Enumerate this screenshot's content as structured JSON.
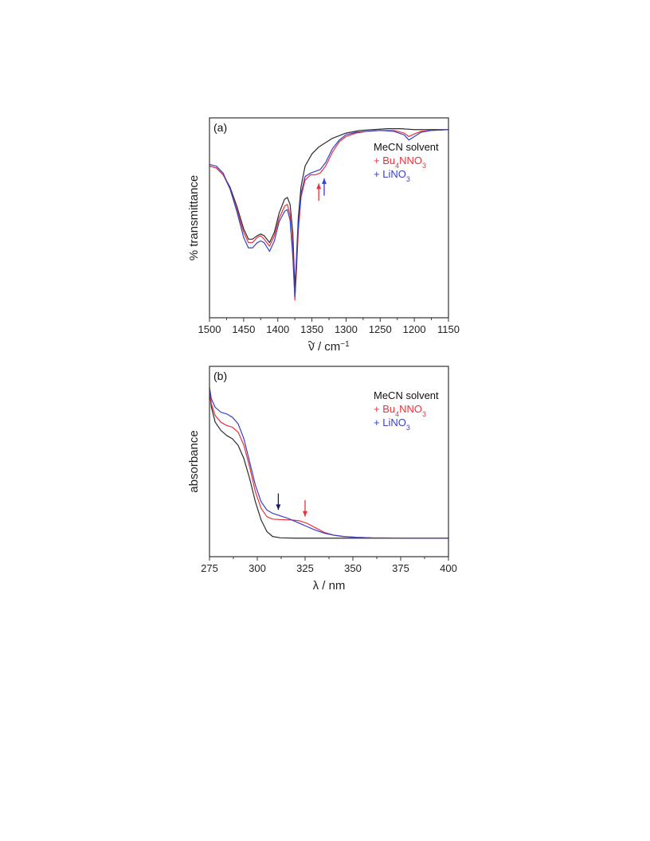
{
  "colors": {
    "black": "#2b2b2b",
    "red": "#e8323c",
    "blue": "#3a3fc8",
    "darkblue": "#1a1a6e",
    "axis": "#333333"
  },
  "chart_data": [
    {
      "type": "line",
      "panel_label": "(a)",
      "xlabel_symbol": "ν",
      "xlabel_rest": " / cm",
      "xlabel_sup": "−1",
      "ylabel": "% transmittance",
      "xlim": [
        1500,
        1150
      ],
      "x_reversed": true,
      "ylim": [
        0,
        100
      ],
      "xticks": [
        "1500",
        "1450",
        "1400",
        "1350",
        "1300",
        "1250",
        "1200",
        "1150"
      ],
      "xtick_values": [
        1500,
        1450,
        1400,
        1350,
        1300,
        1250,
        1200,
        1150
      ],
      "legend": {
        "placement": "top-right",
        "entries": [
          {
            "prefix": "",
            "name": "MeCN solvent",
            "sub": "",
            "suffix": "",
            "sub2": "",
            "color": "#111111"
          },
          {
            "prefix": "+ ",
            "name": "Bu",
            "sub": "4",
            "suffix": "NNO",
            "sub2": "3",
            "color": "#e8323c"
          },
          {
            "prefix": "+ ",
            "name": "LiNO",
            "sub": "3",
            "suffix": "",
            "sub2": "",
            "color": "#3a3fc8"
          }
        ]
      },
      "arrows": [
        {
          "x": 1340,
          "y_from": 58,
          "y_to": 68,
          "direction": "up",
          "color": "#e8323c"
        },
        {
          "x": 1332,
          "y_from": 61,
          "y_to": 71,
          "direction": "up",
          "color": "#3a3fc8"
        }
      ],
      "series": [
        {
          "color": "#2b2b2b",
          "points": [
            [
              1500,
              78
            ],
            [
              1490,
              77
            ],
            [
              1480,
              73
            ],
            [
              1470,
              66
            ],
            [
              1460,
              55
            ],
            [
              1450,
              42
            ],
            [
              1443,
              36
            ],
            [
              1437,
              36
            ],
            [
              1430,
              38
            ],
            [
              1425,
              39
            ],
            [
              1420,
              38
            ],
            [
              1412,
              34
            ],
            [
              1405,
              40
            ],
            [
              1398,
              51
            ],
            [
              1390,
              59
            ],
            [
              1386,
              60
            ],
            [
              1382,
              56
            ],
            [
              1378,
              40
            ],
            [
              1375,
              8
            ],
            [
              1373,
              22
            ],
            [
              1370,
              48
            ],
            [
              1366,
              66
            ],
            [
              1360,
              78
            ],
            [
              1350,
              85
            ],
            [
              1340,
              89
            ],
            [
              1320,
              94
            ],
            [
              1300,
              97
            ],
            [
              1280,
              98.5
            ],
            [
              1260,
              99
            ],
            [
              1240,
              99.5
            ],
            [
              1220,
              99.5
            ],
            [
              1200,
              99
            ],
            [
              1180,
              99
            ],
            [
              1160,
              99
            ],
            [
              1150,
              99
            ]
          ]
        },
        {
          "color": "#e8323c",
          "points": [
            [
              1500,
              78
            ],
            [
              1490,
              77
            ],
            [
              1480,
              73
            ],
            [
              1470,
              65
            ],
            [
              1460,
              53
            ],
            [
              1450,
              40
            ],
            [
              1443,
              34
            ],
            [
              1437,
              34
            ],
            [
              1430,
              37
            ],
            [
              1425,
              38
            ],
            [
              1420,
              36
            ],
            [
              1412,
              32
            ],
            [
              1405,
              38
            ],
            [
              1398,
              48
            ],
            [
              1390,
              55
            ],
            [
              1386,
              56
            ],
            [
              1382,
              50
            ],
            [
              1378,
              30
            ],
            [
              1375,
              1
            ],
            [
              1373,
              15
            ],
            [
              1370,
              40
            ],
            [
              1366,
              60
            ],
            [
              1360,
              70
            ],
            [
              1352,
              73
            ],
            [
              1345,
              73
            ],
            [
              1338,
              74
            ],
            [
              1330,
              78
            ],
            [
              1320,
              86
            ],
            [
              1310,
              92
            ],
            [
              1300,
              95
            ],
            [
              1285,
              97
            ],
            [
              1270,
              98
            ],
            [
              1250,
              98.5
            ],
            [
              1230,
              98.5
            ],
            [
              1215,
              97
            ],
            [
              1208,
              95
            ],
            [
              1200,
              96.5
            ],
            [
              1190,
              98
            ],
            [
              1175,
              98.5
            ],
            [
              1150,
              99
            ]
          ]
        },
        {
          "color": "#3a3fc8",
          "points": [
            [
              1500,
              79
            ],
            [
              1490,
              78
            ],
            [
              1480,
              74
            ],
            [
              1470,
              65
            ],
            [
              1460,
              52
            ],
            [
              1450,
              37
            ],
            [
              1443,
              31
            ],
            [
              1437,
              31
            ],
            [
              1430,
              34
            ],
            [
              1425,
              35
            ],
            [
              1420,
              34
            ],
            [
              1412,
              29
            ],
            [
              1405,
              35
            ],
            [
              1398,
              46
            ],
            [
              1390,
              52
            ],
            [
              1386,
              53
            ],
            [
              1382,
              47
            ],
            [
              1378,
              26
            ],
            [
              1375,
              3
            ],
            [
              1373,
              18
            ],
            [
              1370,
              44
            ],
            [
              1366,
              62
            ],
            [
              1360,
              72
            ],
            [
              1352,
              74
            ],
            [
              1345,
              75
            ],
            [
              1338,
              76
            ],
            [
              1330,
              80
            ],
            [
              1320,
              88
            ],
            [
              1310,
              93
            ],
            [
              1300,
              96
            ],
            [
              1285,
              97.5
            ],
            [
              1270,
              98
            ],
            [
              1250,
              98.5
            ],
            [
              1230,
              98
            ],
            [
              1215,
              96
            ],
            [
              1208,
              93
            ],
            [
              1200,
              95
            ],
            [
              1190,
              97.5
            ],
            [
              1175,
              98.5
            ],
            [
              1150,
              99
            ]
          ]
        }
      ]
    },
    {
      "type": "line",
      "panel_label": "(b)",
      "xlabel_symbol": "λ",
      "xlabel_rest": " / nm",
      "xlabel_sup": "",
      "ylabel": "absorbance",
      "xlim": [
        275,
        400
      ],
      "x_reversed": false,
      "ylim": [
        0,
        100
      ],
      "xticks": [
        "275",
        "300",
        "325",
        "350",
        "375",
        "400"
      ],
      "xtick_values": [
        275,
        300,
        325,
        350,
        375,
        400
      ],
      "legend": {
        "placement": "top-right",
        "entries": [
          {
            "prefix": "",
            "name": "MeCN solvent",
            "sub": "",
            "suffix": "",
            "sub2": "",
            "color": "#111111"
          },
          {
            "prefix": "+ ",
            "name": "Bu",
            "sub": "4",
            "suffix": "NNO",
            "sub2": "3",
            "color": "#e8323c"
          },
          {
            "prefix": "+ ",
            "name": "LiNO",
            "sub": "3",
            "suffix": "",
            "sub2": "",
            "color": "#3a3fc8"
          }
        ]
      },
      "arrows": [
        {
          "x": 311,
          "y_from": 19,
          "y_to": 29,
          "direction": "down",
          "color": "#1a1a6e"
        },
        {
          "x": 325,
          "y_from": 15,
          "y_to": 25,
          "direction": "down",
          "color": "#e8323c"
        }
      ],
      "series": [
        {
          "color": "#2b2b2b",
          "points": [
            [
              275,
              91
            ],
            [
              276,
              81
            ],
            [
              278,
              72
            ],
            [
              281,
              67
            ],
            [
              284,
              64
            ],
            [
              287,
              62
            ],
            [
              290,
              58
            ],
            [
              293,
              50
            ],
            [
              296,
              38
            ],
            [
              299,
              24
            ],
            [
              302,
              13
            ],
            [
              305,
              6
            ],
            [
              308,
              3
            ],
            [
              312,
              2.2
            ],
            [
              320,
              2
            ],
            [
              340,
              2
            ],
            [
              370,
              2
            ],
            [
              400,
              2
            ]
          ]
        },
        {
          "color": "#e8323c",
          "points": [
            [
              275,
              92
            ],
            [
              276,
              83
            ],
            [
              278,
              76
            ],
            [
              281,
              72
            ],
            [
              284,
              70
            ],
            [
              287,
              69
            ],
            [
              290,
              66
            ],
            [
              293,
              58
            ],
            [
              296,
              45
            ],
            [
              299,
              30
            ],
            [
              302,
              20
            ],
            [
              305,
              15
            ],
            [
              308,
              13.5
            ],
            [
              312,
              13.2
            ],
            [
              318,
              13
            ],
            [
              322,
              12.5
            ],
            [
              326,
              11
            ],
            [
              330,
              8.5
            ],
            [
              335,
              5.5
            ],
            [
              340,
              3.8
            ],
            [
              345,
              3
            ],
            [
              352,
              2.5
            ],
            [
              360,
              2.2
            ],
            [
              380,
              2
            ],
            [
              400,
              2
            ]
          ]
        },
        {
          "color": "#3a3fc8",
          "points": [
            [
              275,
              93
            ],
            [
              276,
              86
            ],
            [
              278,
              81
            ],
            [
              281,
              78
            ],
            [
              284,
              77
            ],
            [
              287,
              75
            ],
            [
              290,
              71
            ],
            [
              293,
              62
            ],
            [
              296,
              48
            ],
            [
              299,
              34
            ],
            [
              302,
              24
            ],
            [
              305,
              19
            ],
            [
              308,
              17
            ],
            [
              312,
              15.5
            ],
            [
              316,
              14
            ],
            [
              320,
              12
            ],
            [
              325,
              9.5
            ],
            [
              330,
              7
            ],
            [
              335,
              5
            ],
            [
              340,
              3.8
            ],
            [
              345,
              3
            ],
            [
              352,
              2.5
            ],
            [
              360,
              2.2
            ],
            [
              380,
              2
            ],
            [
              400,
              2
            ]
          ]
        }
      ]
    }
  ]
}
